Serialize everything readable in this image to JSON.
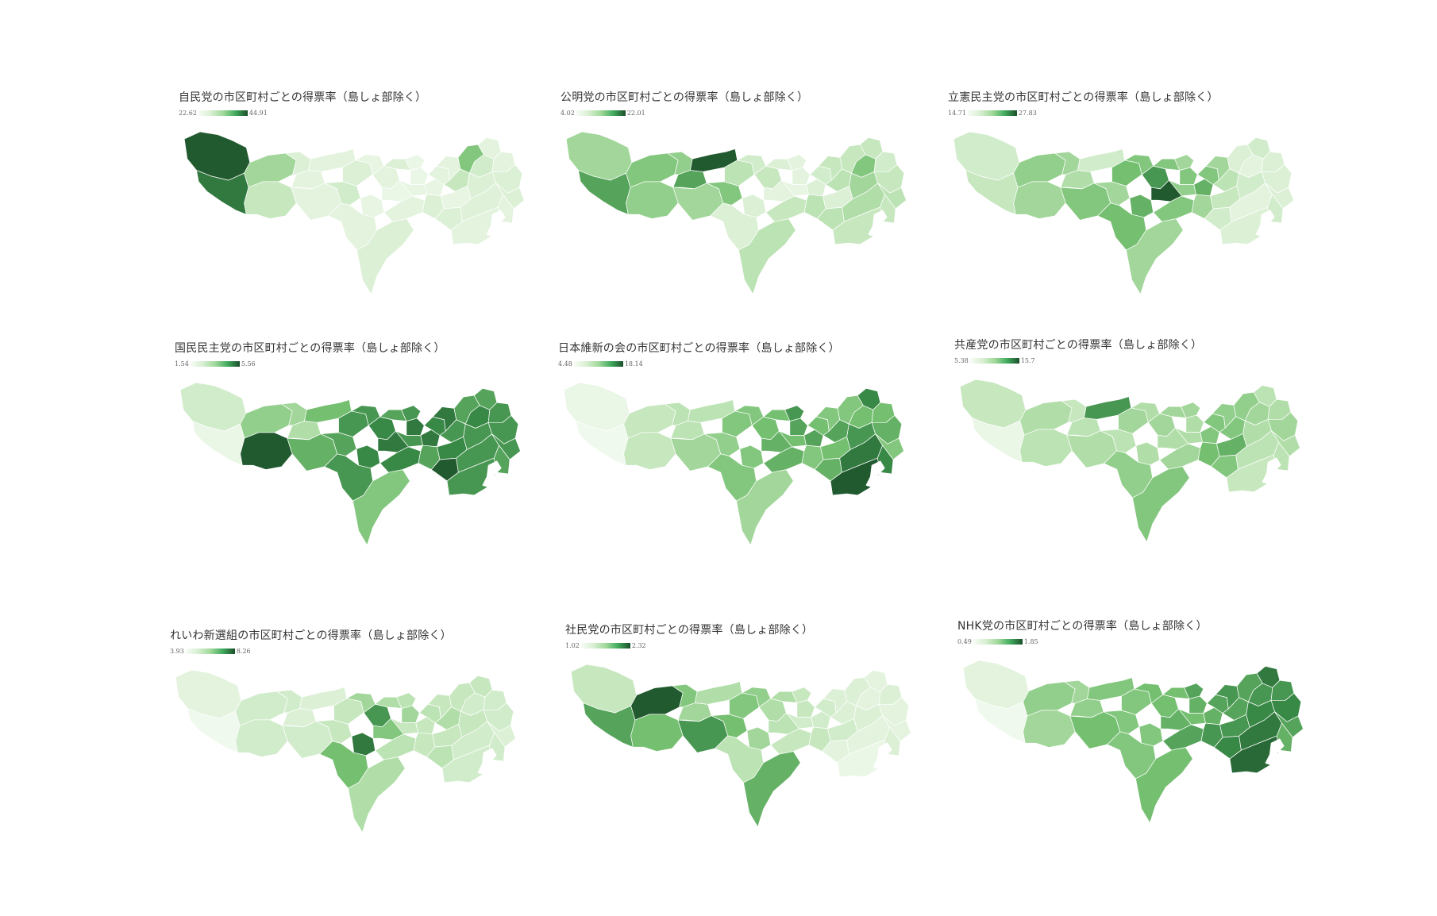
{
  "panels": [
    {
      "title": "自民党の市区町村ごとの得票率（島しょ部除く）",
      "min": "22.62",
      "max": "44.91",
      "levels": [
        0.95,
        0.85,
        0.45,
        0.3,
        0.2,
        0.15,
        0.15,
        0.15,
        0.25,
        0.2,
        0.12,
        0.12,
        0.15,
        0.1,
        0.15,
        0.2,
        0.1,
        0.1,
        0.12,
        0.15,
        0.12,
        0.2,
        0.15,
        0.15,
        0.3,
        0.12,
        0.2,
        0.55,
        0.25,
        0.2,
        0.18,
        0.15,
        0.15,
        0.15,
        0.2,
        0.2,
        0.15,
        0.2
      ]
    },
    {
      "title": "公明党の市区町村ごとの得票率（島しょ部除く）",
      "min": "4.02",
      "max": "22.01",
      "levels": [
        0.45,
        0.7,
        0.55,
        0.5,
        0.5,
        0.7,
        0.95,
        0.45,
        0.55,
        0.35,
        0.25,
        0.2,
        0.3,
        0.15,
        0.2,
        0.2,
        0.15,
        0.15,
        0.12,
        0.3,
        0.2,
        0.35,
        0.25,
        0.3,
        0.35,
        0.2,
        0.35,
        0.3,
        0.55,
        0.45,
        0.4,
        0.3,
        0.3,
        0.25,
        0.3,
        0.35,
        0.3,
        0.35
      ]
    },
    {
      "title": "立憲民主党の市区町村ごとの得票率（島しょ部除く）",
      "min": "14.71",
      "max": "27.83",
      "levels": [
        0.25,
        0.3,
        0.5,
        0.45,
        0.45,
        0.4,
        0.25,
        0.55,
        0.45,
        0.6,
        0.55,
        0.65,
        0.75,
        0.95,
        0.6,
        0.55,
        0.55,
        0.45,
        0.5,
        0.55,
        0.65,
        0.45,
        0.55,
        0.45,
        0.35,
        0.3,
        0.25,
        0.2,
        0.15,
        0.25,
        0.15,
        0.2,
        0.25,
        0.2,
        0.2,
        0.2,
        0.25,
        0.45
      ]
    },
    {
      "title": "国民民主党の市区町村ごとの得票率（島しょ部除く）",
      "min": "1.54",
      "max": "5.56",
      "levels": [
        0.25,
        0.1,
        0.5,
        0.95,
        0.45,
        0.4,
        0.6,
        0.65,
        0.7,
        0.75,
        0.75,
        0.8,
        0.8,
        0.85,
        0.75,
        0.7,
        0.85,
        0.75,
        0.75,
        0.8,
        0.85,
        0.7,
        0.8,
        0.85,
        0.75,
        0.8,
        0.95,
        0.7,
        0.8,
        0.75,
        0.75,
        0.75,
        0.7,
        0.75,
        0.75,
        0.75,
        0.7,
        0.55
      ]
    },
    {
      "title": "日本維新の会の市区町村ごとの得票率（島しょ部除く）",
      "min": "4.48",
      "max": "18.14",
      "levels": [
        0.1,
        0.05,
        0.3,
        0.3,
        0.35,
        0.35,
        0.35,
        0.45,
        0.5,
        0.55,
        0.55,
        0.55,
        0.6,
        0.65,
        0.55,
        0.6,
        0.7,
        0.75,
        0.6,
        0.65,
        0.7,
        0.55,
        0.6,
        0.55,
        0.7,
        0.6,
        0.65,
        0.55,
        0.6,
        0.75,
        0.85,
        0.95,
        0.8,
        0.6,
        0.65,
        0.55,
        0.8,
        0.45
      ]
    },
    {
      "title": "共産党の市区町村ごとの得票率（島しょ部除く）",
      "min": "5.38",
      "max": "15.7",
      "levels": [
        0.3,
        0.1,
        0.4,
        0.35,
        0.3,
        0.35,
        0.75,
        0.4,
        0.35,
        0.45,
        0.4,
        0.4,
        0.45,
        0.4,
        0.5,
        0.45,
        0.4,
        0.45,
        0.4,
        0.45,
        0.55,
        0.6,
        0.55,
        0.5,
        0.55,
        0.65,
        0.55,
        0.5,
        0.45,
        0.4,
        0.35,
        0.3,
        0.35,
        0.4,
        0.45,
        0.4,
        0.35,
        0.55
      ]
    },
    {
      "title": "れいわ新選組の市区町村ごとの得票率（島しょ部除く）",
      "min": "3.93",
      "max": "8.26",
      "levels": [
        0.15,
        0.05,
        0.25,
        0.25,
        0.25,
        0.2,
        0.2,
        0.25,
        0.3,
        0.3,
        0.45,
        0.85,
        0.75,
        0.55,
        0.6,
        0.4,
        0.45,
        0.35,
        0.3,
        0.35,
        0.3,
        0.3,
        0.35,
        0.3,
        0.4,
        0.3,
        0.35,
        0.3,
        0.25,
        0.3,
        0.25,
        0.25,
        0.3,
        0.25,
        0.25,
        0.2,
        0.25,
        0.4
      ]
    },
    {
      "title": "社民党の市区町村ごとの得票率（島しょ部除く）",
      "min": "1.02",
      "max": "2.32",
      "levels": [
        0.3,
        0.7,
        0.95,
        0.6,
        0.55,
        0.45,
        0.4,
        0.75,
        0.6,
        0.55,
        0.5,
        0.45,
        0.4,
        0.35,
        0.35,
        0.4,
        0.3,
        0.3,
        0.25,
        0.3,
        0.25,
        0.3,
        0.25,
        0.2,
        0.2,
        0.25,
        0.15,
        0.2,
        0.15,
        0.2,
        0.15,
        0.1,
        0.15,
        0.2,
        0.15,
        0.15,
        0.2,
        0.65
      ]
    },
    {
      "title": "NHK党の市区町村ごとの得票率（島しょ部除く）",
      "min": "0.49",
      "max": "1.85",
      "levels": [
        0.15,
        0.05,
        0.5,
        0.45,
        0.45,
        0.5,
        0.55,
        0.6,
        0.55,
        0.55,
        0.6,
        0.55,
        0.6,
        0.65,
        0.55,
        0.6,
        0.65,
        0.7,
        0.6,
        0.7,
        0.65,
        0.75,
        0.7,
        0.75,
        0.7,
        0.75,
        0.8,
        0.7,
        0.75,
        0.8,
        0.85,
        0.9,
        0.85,
        0.75,
        0.8,
        0.7,
        0.65,
        0.6
      ]
    }
  ]
}
